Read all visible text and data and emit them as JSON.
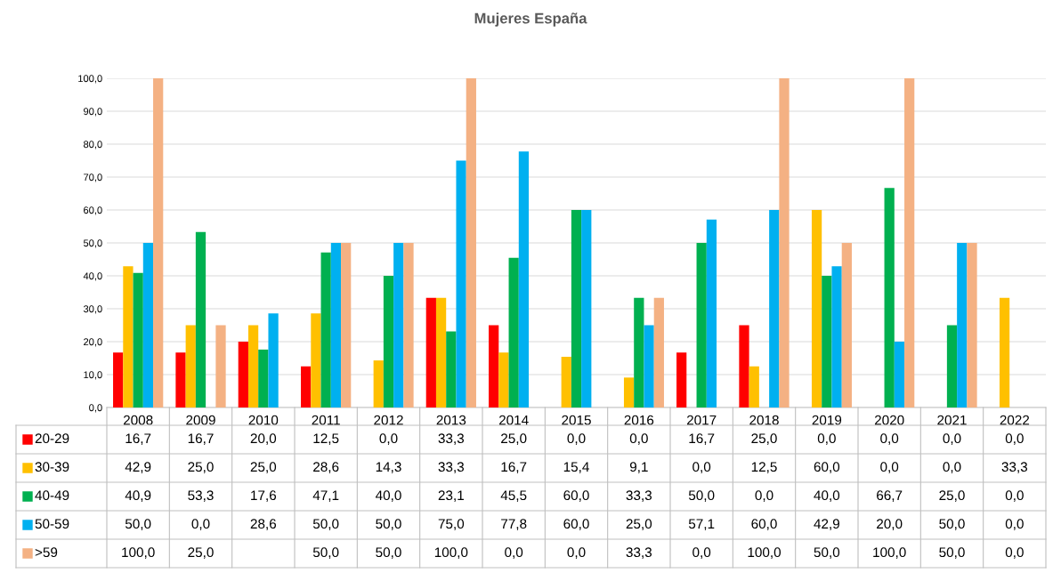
{
  "chart_data": {
    "type": "bar",
    "title": "Mujeres España",
    "categories": [
      "2008",
      "2009",
      "2010",
      "2011",
      "2012",
      "2013",
      "2014",
      "2015",
      "2016",
      "2017",
      "2018",
      "2019",
      "2020",
      "2021",
      "2022"
    ],
    "series": [
      {
        "name": "20-29",
        "color": "#ff0000",
        "values": [
          16.7,
          16.7,
          20.0,
          12.5,
          0.0,
          33.3,
          25.0,
          0.0,
          0.0,
          16.7,
          25.0,
          0.0,
          0.0,
          0.0,
          0.0
        ],
        "value_labels": [
          "16,7",
          "16,7",
          "20,0",
          "12,5",
          "0,0",
          "33,3",
          "25,0",
          "0,0",
          "0,0",
          "16,7",
          "25,0",
          "0,0",
          "0,0",
          "0,0",
          "0,0"
        ]
      },
      {
        "name": "30-39",
        "color": "#ffc000",
        "values": [
          42.9,
          25.0,
          25.0,
          28.6,
          14.3,
          33.3,
          16.7,
          15.4,
          9.1,
          0.0,
          12.5,
          60.0,
          0.0,
          0.0,
          33.3
        ],
        "value_labels": [
          "42,9",
          "25,0",
          "25,0",
          "28,6",
          "14,3",
          "33,3",
          "16,7",
          "15,4",
          "9,1",
          "0,0",
          "12,5",
          "60,0",
          "0,0",
          "0,0",
          "33,3"
        ]
      },
      {
        "name": "40-49",
        "color": "#00b050",
        "values": [
          40.9,
          53.3,
          17.6,
          47.1,
          40.0,
          23.1,
          45.5,
          60.0,
          33.3,
          50.0,
          0.0,
          40.0,
          66.7,
          25.0,
          0.0
        ],
        "value_labels": [
          "40,9",
          "53,3",
          "17,6",
          "47,1",
          "40,0",
          "23,1",
          "45,5",
          "60,0",
          "33,3",
          "50,0",
          "0,0",
          "40,0",
          "66,7",
          "25,0",
          "0,0"
        ]
      },
      {
        "name": "50-59",
        "color": "#00b0f0",
        "values": [
          50.0,
          0.0,
          28.6,
          50.0,
          50.0,
          75.0,
          77.8,
          60.0,
          25.0,
          57.1,
          60.0,
          42.9,
          20.0,
          50.0,
          0.0
        ],
        "value_labels": [
          "50,0",
          "0,0",
          "28,6",
          "50,0",
          "50,0",
          "75,0",
          "77,8",
          "60,0",
          "25,0",
          "57,1",
          "60,0",
          "42,9",
          "20,0",
          "50,0",
          "0,0"
        ]
      },
      {
        "name": ">59",
        "color": "#f4b183",
        "values": [
          100.0,
          25.0,
          null,
          50.0,
          50.0,
          100.0,
          0.0,
          0.0,
          33.3,
          0.0,
          100.0,
          50.0,
          100.0,
          50.0,
          0.0
        ],
        "value_labels": [
          "100,0",
          "25,0",
          null,
          "50,0",
          "50,0",
          "100,0",
          "0,0",
          "0,0",
          "33,3",
          "0,0",
          "100,0",
          "50,0",
          "100,0",
          "50,0",
          "0,0"
        ]
      }
    ],
    "ylim": [
      0,
      100
    ],
    "yticks": [
      {
        "value": 0,
        "label": "0,0"
      },
      {
        "value": 10,
        "label": "10,0"
      },
      {
        "value": 20,
        "label": "20,0"
      },
      {
        "value": 30,
        "label": "30,0"
      },
      {
        "value": 40,
        "label": "40,0"
      },
      {
        "value": 50,
        "label": "50,0"
      },
      {
        "value": 60,
        "label": "60,0"
      },
      {
        "value": 70,
        "label": "70,0"
      },
      {
        "value": 80,
        "label": "80,0"
      },
      {
        "value": 90,
        "label": "90,0"
      },
      {
        "value": 100,
        "label": "100,0"
      }
    ],
    "grid": "y",
    "legend": "bottom"
  }
}
